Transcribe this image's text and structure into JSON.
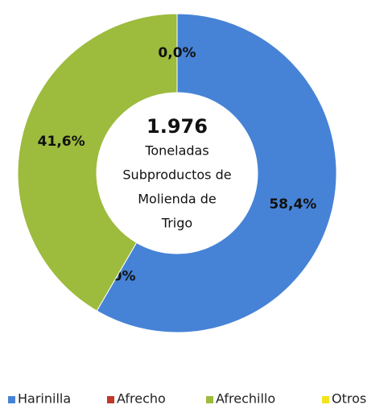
{
  "chart_data": {
    "type": "donut",
    "categories": [
      "Harinilla",
      "Afrecho",
      "Afrechillo",
      "Otros"
    ],
    "values": [
      58.4,
      0.0,
      41.6,
      0.0
    ],
    "value_labels": [
      "58,4%",
      "0,0%",
      "41,6%",
      "0,0%"
    ],
    "colors": [
      "#4683d6",
      "#c0392b",
      "#9dbb3d",
      "#f2e41c"
    ],
    "center_value": "1.976",
    "center_text": [
      "Toneladas",
      "Subproductos de",
      "Molienda de",
      "Trigo"
    ]
  }
}
